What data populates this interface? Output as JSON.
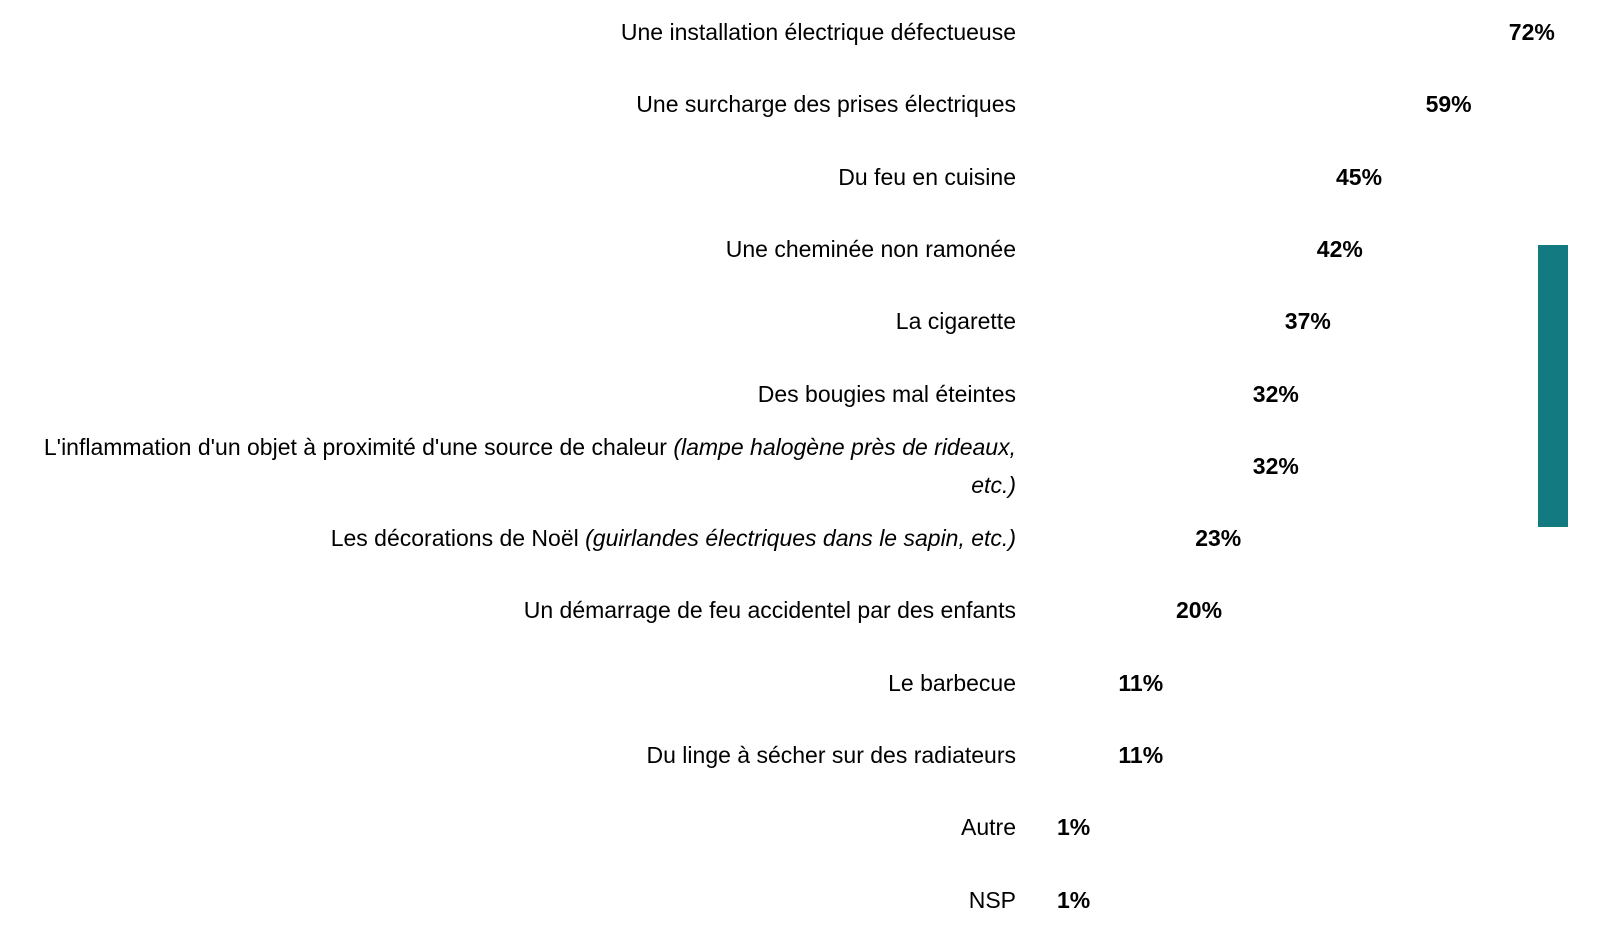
{
  "chart_data": {
    "type": "barh",
    "categories": [
      "Une installation électrique défectueuse",
      "Une surcharge des prises électriques",
      "Du feu en cuisine",
      "Une cheminée non ramonée",
      "La cigarette",
      "Des bougies mal éteintes",
      "L'inflammation d'un objet à proximité d'une source de chaleur",
      "Les décorations de Noël",
      "Un démarrage de feu accidentel par des enfants",
      "Le barbecue",
      "Du linge à sécher sur des radiateurs",
      "Autre",
      "NSP"
    ],
    "category_notes": [
      null,
      null,
      null,
      null,
      null,
      null,
      "(lampe halogène près de rideaux, etc.)",
      "(guirlandes électriques dans le sapin, etc.)",
      null,
      null,
      null,
      null,
      null
    ],
    "values": [
      72,
      59,
      45,
      42,
      37,
      32,
      32,
      23,
      20,
      11,
      11,
      1,
      1
    ],
    "value_labels": [
      "72%",
      "59%",
      "45%",
      "42%",
      "37%",
      "32%",
      "32%",
      "23%",
      "20%",
      "11%",
      "11%",
      "1%",
      "1%"
    ],
    "colors": [
      "#127a80",
      "#127a80",
      "#14b1b8",
      "#14b1b8",
      "#14b1b8",
      "#14b1b8",
      "#14b1b8",
      "#127a80",
      "#14b1b8",
      "#14b1b8",
      "#14b1b8",
      "#ed7d31",
      "#a5a5a5"
    ]
  }
}
